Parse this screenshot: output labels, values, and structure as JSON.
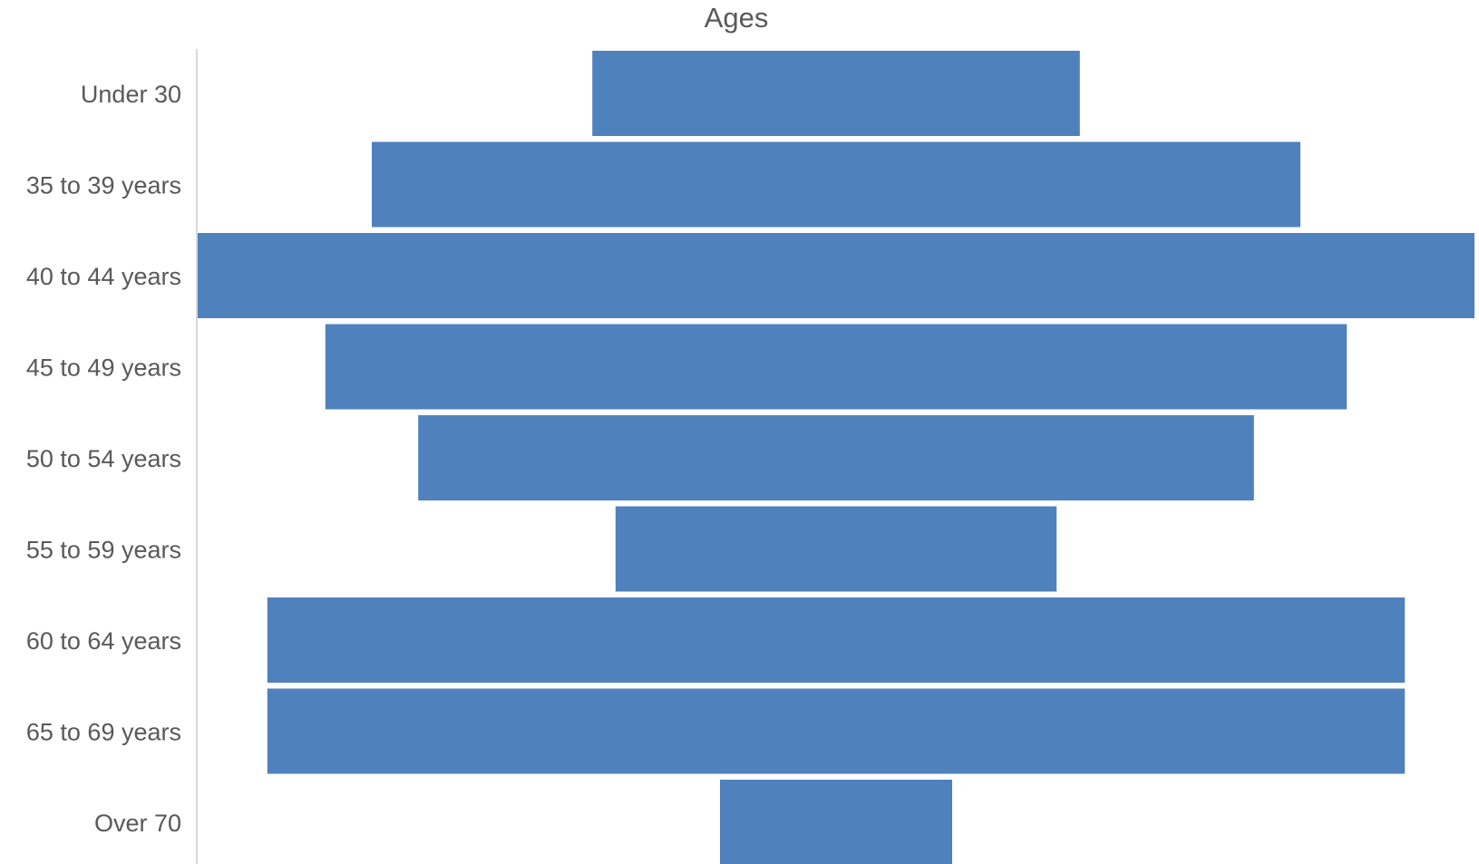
{
  "chart_data": {
    "type": "bar",
    "orientation": "horizontal",
    "layout": "funnel",
    "title": "Ages",
    "xlabel": "",
    "ylabel": "",
    "categories": [
      "Under 30",
      "35 to 39 years",
      "40 to 44 years",
      "45 to 49 years",
      "50 to 54 years",
      "55 to 59 years",
      "60 to 64 years",
      "65 to 69 years",
      "Over 70"
    ],
    "values": [
      21,
      40,
      55,
      44,
      36,
      19,
      49,
      49,
      10
    ],
    "xlim": [
      0,
      55
    ],
    "grid": false,
    "legend": "none",
    "bar_color": "#4f81bd",
    "text_color": "#595959",
    "axis_color": "#d9d9d9"
  }
}
